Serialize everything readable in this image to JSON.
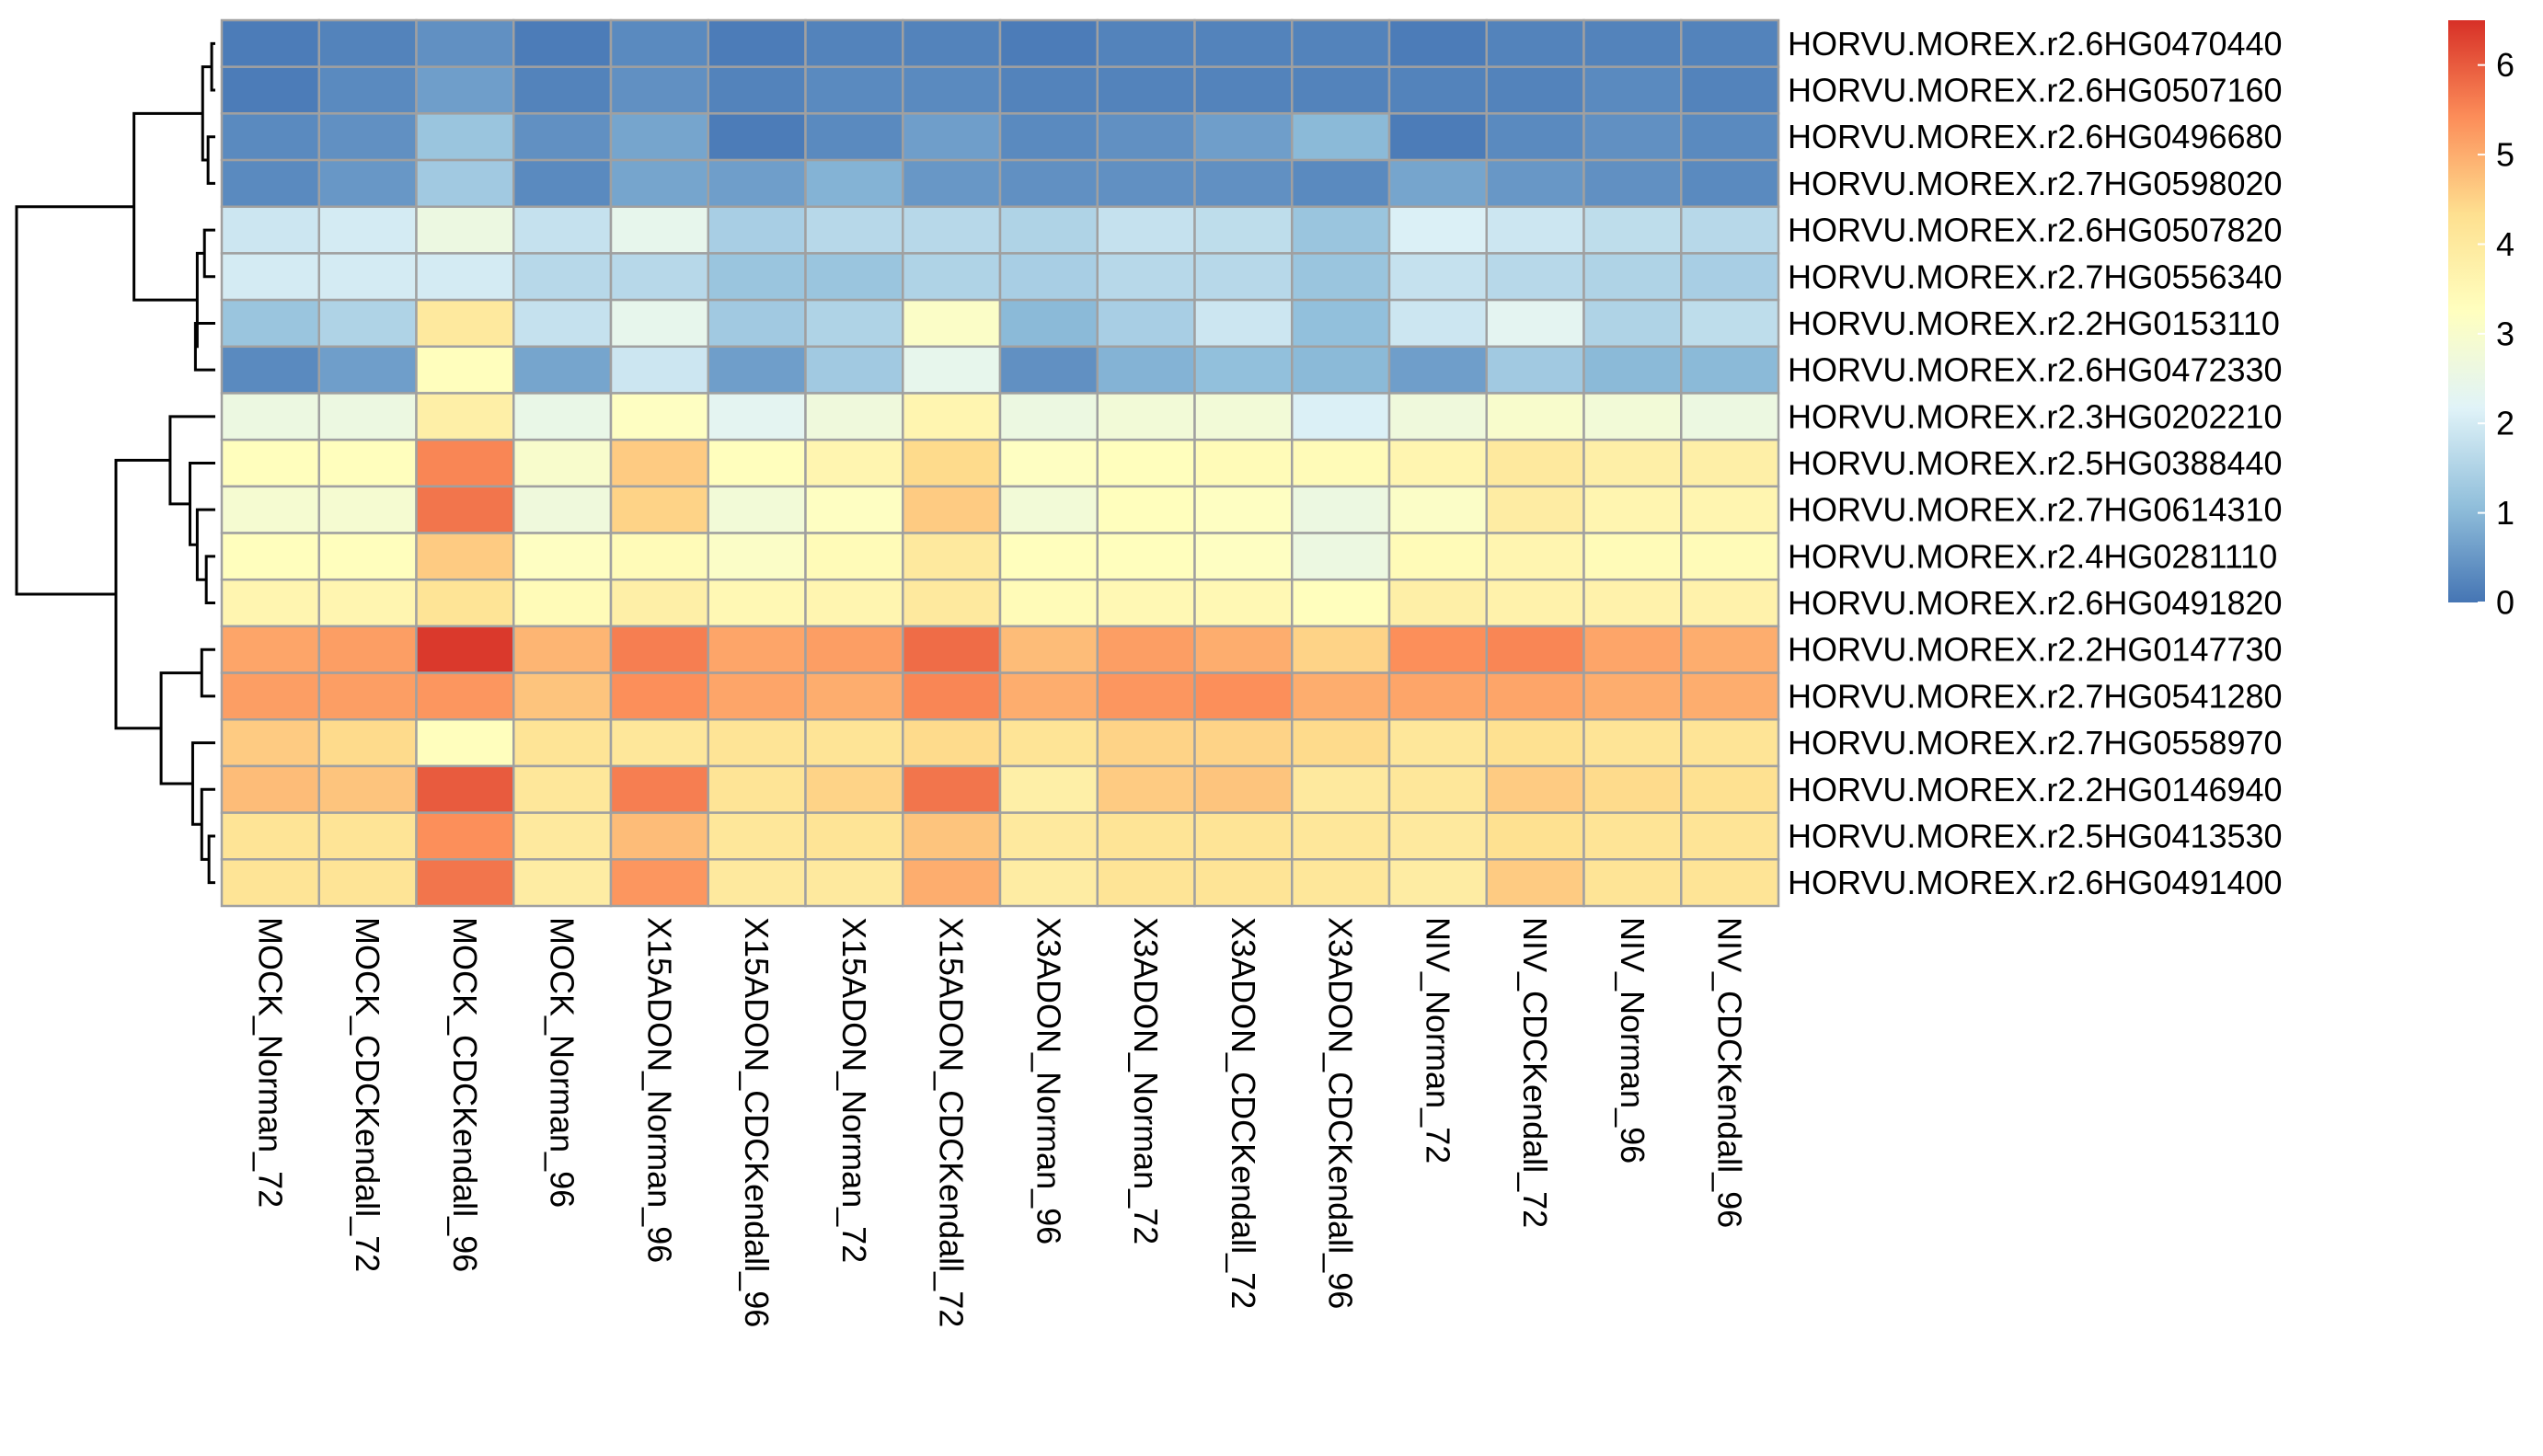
{
  "chart_data": {
    "type": "heatmap",
    "title": "",
    "columns": [
      "MOCK_Norman_72",
      "MOCK_CDCKendall_72",
      "MOCK_CDCKendall_96",
      "MOCK_Norman_96",
      "X15ADON_Norman_96",
      "X15ADON_CDCKendall_96",
      "X15ADON_Norman_72",
      "X15ADON_CDCKendall_72",
      "X3ADON_Norman_96",
      "X3ADON_Norman_72",
      "X3ADON_CDCKendall_72",
      "X3ADON_CDCKendall_96",
      "NIV_Norman_72",
      "NIV_CDCKendall_72",
      "NIV_Norman_96",
      "NIV_CDCKendall_96"
    ],
    "rows": [
      "HORVU.MOREX.r2.6HG0470440",
      "HORVU.MOREX.r2.6HG0507160",
      "HORVU.MOREX.r2.6HG0496680",
      "HORVU.MOREX.r2.7HG0598020",
      "HORVU.MOREX.r2.6HG0507820",
      "HORVU.MOREX.r2.7HG0556340",
      "HORVU.MOREX.r2.2HG0153110",
      "HORVU.MOREX.r2.6HG0472330",
      "HORVU.MOREX.r2.3HG0202210",
      "HORVU.MOREX.r2.5HG0388440",
      "HORVU.MOREX.r2.7HG0614310",
      "HORVU.MOREX.r2.4HG0281110",
      "HORVU.MOREX.r2.6HG0491820",
      "HORVU.MOREX.r2.2HG0147730",
      "HORVU.MOREX.r2.7HG0541280",
      "HORVU.MOREX.r2.7HG0558970",
      "HORVU.MOREX.r2.2HG0146940",
      "HORVU.MOREX.r2.5HG0413530",
      "HORVU.MOREX.r2.6HG0491400"
    ],
    "values": [
      [
        0.1,
        0.2,
        0.4,
        0.1,
        0.3,
        0.1,
        0.2,
        0.2,
        0.1,
        0.2,
        0.2,
        0.2,
        0.1,
        0.2,
        0.2,
        0.2
      ],
      [
        0.1,
        0.3,
        0.6,
        0.2,
        0.4,
        0.2,
        0.3,
        0.3,
        0.2,
        0.2,
        0.2,
        0.2,
        0.2,
        0.2,
        0.3,
        0.2
      ],
      [
        0.3,
        0.4,
        1.2,
        0.4,
        0.7,
        0.1,
        0.3,
        0.6,
        0.3,
        0.4,
        0.6,
        1.0,
        0.1,
        0.3,
        0.4,
        0.3
      ],
      [
        0.3,
        0.5,
        1.3,
        0.3,
        0.7,
        0.6,
        0.9,
        0.5,
        0.4,
        0.4,
        0.4,
        0.3,
        0.7,
        0.5,
        0.4,
        0.3
      ],
      [
        1.9,
        2.0,
        2.6,
        1.8,
        2.4,
        1.4,
        1.6,
        1.6,
        1.5,
        1.8,
        1.7,
        1.2,
        2.1,
        1.9,
        1.7,
        1.6
      ],
      [
        2.0,
        2.0,
        2.0,
        1.6,
        1.6,
        1.2,
        1.2,
        1.5,
        1.4,
        1.6,
        1.6,
        1.2,
        1.8,
        1.6,
        1.5,
        1.4
      ],
      [
        1.2,
        1.5,
        4.0,
        1.8,
        2.4,
        1.3,
        1.5,
        3.1,
        1.0,
        1.4,
        1.9,
        1.1,
        1.9,
        2.3,
        1.5,
        1.7
      ],
      [
        0.3,
        0.6,
        3.3,
        0.7,
        1.9,
        0.6,
        1.3,
        2.4,
        0.4,
        0.9,
        1.1,
        1.0,
        0.6,
        1.3,
        1.0,
        1.0
      ],
      [
        2.6,
        2.6,
        3.8,
        2.5,
        3.2,
        2.3,
        2.7,
        3.6,
        2.6,
        2.8,
        2.8,
        2.1,
        2.7,
        3.0,
        2.8,
        2.6
      ],
      [
        3.3,
        3.3,
        5.5,
        3.0,
        4.6,
        3.3,
        3.6,
        4.4,
        3.2,
        3.3,
        3.4,
        3.4,
        3.6,
        4.0,
        3.8,
        3.8
      ],
      [
        2.9,
        2.9,
        5.7,
        2.7,
        4.5,
        2.8,
        3.2,
        4.6,
        2.8,
        3.3,
        3.2,
        2.6,
        3.1,
        3.9,
        3.6,
        3.6
      ],
      [
        3.3,
        3.3,
        4.6,
        3.2,
        3.4,
        3.1,
        3.4,
        4.0,
        3.3,
        3.3,
        3.2,
        2.6,
        3.4,
        3.6,
        3.4,
        3.4
      ],
      [
        3.6,
        3.6,
        4.2,
        3.4,
        3.8,
        3.5,
        3.6,
        4.0,
        3.4,
        3.5,
        3.5,
        3.3,
        3.8,
        3.7,
        3.7,
        3.7
      ],
      [
        5.1,
        5.2,
        6.4,
        4.9,
        5.6,
        5.1,
        5.2,
        5.8,
        4.8,
        5.2,
        5.0,
        4.5,
        5.4,
        5.5,
        5.1,
        5.0
      ],
      [
        5.2,
        5.2,
        5.3,
        4.7,
        5.4,
        5.1,
        5.0,
        5.5,
        5.0,
        5.3,
        5.4,
        5.0,
        5.1,
        5.1,
        5.0,
        5.0
      ],
      [
        4.6,
        4.4,
        3.3,
        4.2,
        4.1,
        4.2,
        4.2,
        4.4,
        4.2,
        4.5,
        4.5,
        4.4,
        4.1,
        4.3,
        4.2,
        4.2
      ],
      [
        4.8,
        4.7,
        6.0,
        4.1,
        5.6,
        4.2,
        4.5,
        5.7,
        3.8,
        4.6,
        4.7,
        4.0,
        4.1,
        4.6,
        4.4,
        4.3
      ],
      [
        4.2,
        4.2,
        5.4,
        4.0,
        4.8,
        4.1,
        4.2,
        4.7,
        4.0,
        4.2,
        4.2,
        4.1,
        4.0,
        4.3,
        4.2,
        4.2
      ],
      [
        4.2,
        4.2,
        5.7,
        3.9,
        5.3,
        4.0,
        4.0,
        5.0,
        3.9,
        4.2,
        4.2,
        4.1,
        3.9,
        4.6,
        4.2,
        4.2
      ]
    ],
    "color_scale": {
      "min": 0,
      "max": 6.5,
      "stops": [
        {
          "value": 0,
          "color": "#4575b4"
        },
        {
          "value": 1.08,
          "color": "#91bfdb"
        },
        {
          "value": 2.17,
          "color": "#e0f3f8"
        },
        {
          "value": 3.25,
          "color": "#ffffbf"
        },
        {
          "value": 4.33,
          "color": "#fee090"
        },
        {
          "value": 5.42,
          "color": "#fc8d59"
        },
        {
          "value": 6.5,
          "color": "#d73027"
        }
      ],
      "ticks": [
        "0",
        "1",
        "2",
        "3",
        "4",
        "5",
        "6"
      ],
      "tick_values": [
        0,
        1,
        2,
        3,
        4,
        5,
        6
      ]
    },
    "cell_border_color": "#a0a0a0",
    "row_dendrogram": true,
    "legend_placement": "top-right"
  }
}
